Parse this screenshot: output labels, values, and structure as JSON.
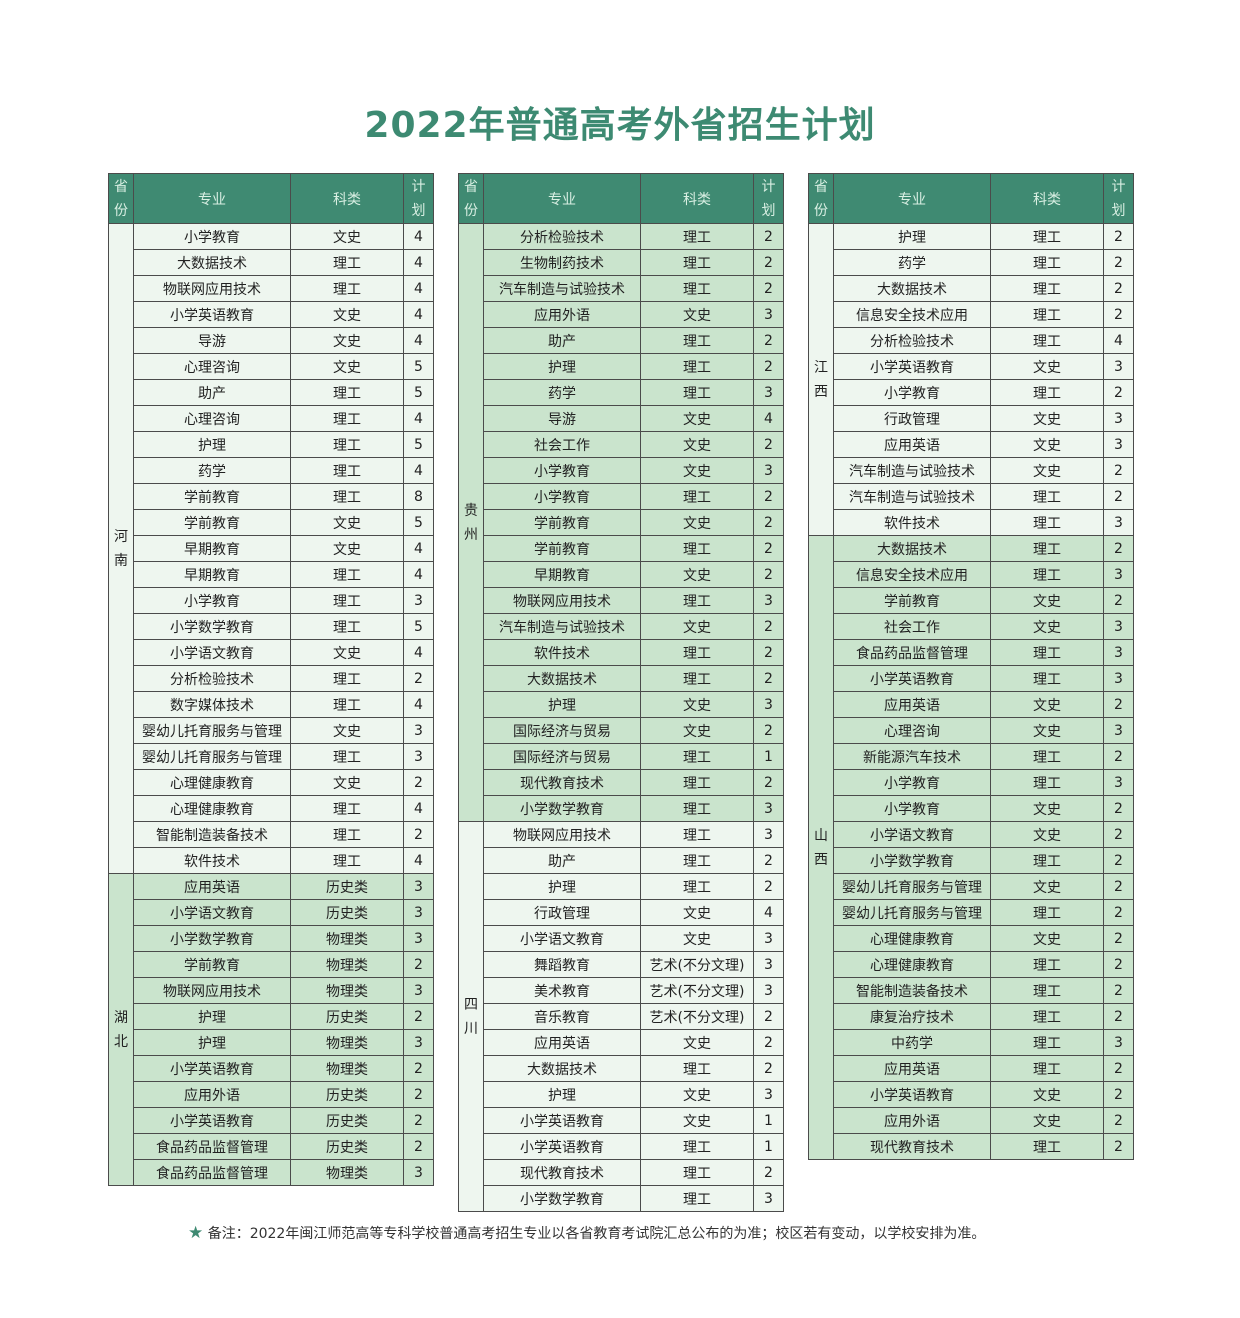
{
  "title": "2022年普通高考外省招生计划",
  "headers": {
    "province": "省份",
    "major": "专业",
    "subject": "科类",
    "plan": "计划"
  },
  "tables": [
    {
      "groups": [
        {
          "province": "河南",
          "shade": "light",
          "rows": [
            [
              "小学教育",
              "文史",
              "4"
            ],
            [
              "大数据技术",
              "理工",
              "4"
            ],
            [
              "物联网应用技术",
              "理工",
              "4"
            ],
            [
              "小学英语教育",
              "文史",
              "4"
            ],
            [
              "导游",
              "文史",
              "4"
            ],
            [
              "心理咨询",
              "文史",
              "5"
            ],
            [
              "助产",
              "理工",
              "5"
            ],
            [
              "心理咨询",
              "理工",
              "4"
            ],
            [
              "护理",
              "理工",
              "5"
            ],
            [
              "药学",
              "理工",
              "4"
            ],
            [
              "学前教育",
              "理工",
              "8"
            ],
            [
              "学前教育",
              "文史",
              "5"
            ],
            [
              "早期教育",
              "文史",
              "4"
            ],
            [
              "早期教育",
              "理工",
              "4"
            ],
            [
              "小学教育",
              "理工",
              "3"
            ],
            [
              "小学数学教育",
              "理工",
              "5"
            ],
            [
              "小学语文教育",
              "文史",
              "4"
            ],
            [
              "分析检验技术",
              "理工",
              "2"
            ],
            [
              "数字媒体技术",
              "理工",
              "4"
            ],
            [
              "婴幼儿托育服务与管理",
              "文史",
              "3"
            ],
            [
              "婴幼儿托育服务与管理",
              "理工",
              "3"
            ],
            [
              "心理健康教育",
              "文史",
              "2"
            ],
            [
              "心理健康教育",
              "理工",
              "4"
            ],
            [
              "智能制造装备技术",
              "理工",
              "2"
            ],
            [
              "软件技术",
              "理工",
              "4"
            ]
          ]
        },
        {
          "province": "湖北",
          "shade": "dark",
          "rows": [
            [
              "应用英语",
              "历史类",
              "3"
            ],
            [
              "小学语文教育",
              "历史类",
              "3"
            ],
            [
              "小学数学教育",
              "物理类",
              "3"
            ],
            [
              "学前教育",
              "物理类",
              "2"
            ],
            [
              "物联网应用技术",
              "物理类",
              "3"
            ],
            [
              "护理",
              "历史类",
              "2"
            ],
            [
              "护理",
              "物理类",
              "3"
            ],
            [
              "小学英语教育",
              "物理类",
              "2"
            ],
            [
              "应用外语",
              "历史类",
              "2"
            ],
            [
              "小学英语教育",
              "历史类",
              "2"
            ],
            [
              "食品药品监督管理",
              "历史类",
              "2"
            ],
            [
              "食品药品监督管理",
              "物理类",
              "3"
            ]
          ]
        }
      ]
    },
    {
      "groups": [
        {
          "province": "贵州",
          "shade": "dark",
          "rows": [
            [
              "分析检验技术",
              "理工",
              "2"
            ],
            [
              "生物制药技术",
              "理工",
              "2"
            ],
            [
              "汽车制造与试验技术",
              "理工",
              "2"
            ],
            [
              "应用外语",
              "文史",
              "3"
            ],
            [
              "助产",
              "理工",
              "2"
            ],
            [
              "护理",
              "理工",
              "2"
            ],
            [
              "药学",
              "理工",
              "3"
            ],
            [
              "导游",
              "文史",
              "4"
            ],
            [
              "社会工作",
              "文史",
              "2"
            ],
            [
              "小学教育",
              "文史",
              "3"
            ],
            [
              "小学教育",
              "理工",
              "2"
            ],
            [
              "学前教育",
              "文史",
              "2"
            ],
            [
              "学前教育",
              "理工",
              "2"
            ],
            [
              "早期教育",
              "文史",
              "2"
            ],
            [
              "物联网应用技术",
              "理工",
              "3"
            ],
            [
              "汽车制造与试验技术",
              "文史",
              "2"
            ],
            [
              "软件技术",
              "理工",
              "2"
            ],
            [
              "大数据技术",
              "理工",
              "2"
            ],
            [
              "护理",
              "文史",
              "3"
            ],
            [
              "国际经济与贸易",
              "文史",
              "2"
            ],
            [
              "国际经济与贸易",
              "理工",
              "1"
            ],
            [
              "现代教育技术",
              "理工",
              "2"
            ],
            [
              "小学数学教育",
              "理工",
              "3"
            ]
          ]
        },
        {
          "province": "四川",
          "shade": "light",
          "rows": [
            [
              "物联网应用技术",
              "理工",
              "3"
            ],
            [
              "助产",
              "理工",
              "2"
            ],
            [
              "护理",
              "理工",
              "2"
            ],
            [
              "行政管理",
              "文史",
              "4"
            ],
            [
              "小学语文教育",
              "文史",
              "3"
            ],
            [
              "舞蹈教育",
              "艺术(不分文理)",
              "3"
            ],
            [
              "美术教育",
              "艺术(不分文理)",
              "3"
            ],
            [
              "音乐教育",
              "艺术(不分文理)",
              "2"
            ],
            [
              "应用英语",
              "文史",
              "2"
            ],
            [
              "大数据技术",
              "理工",
              "2"
            ],
            [
              "护理",
              "文史",
              "3"
            ],
            [
              "小学英语教育",
              "文史",
              "1"
            ],
            [
              "小学英语教育",
              "理工",
              "1"
            ],
            [
              "现代教育技术",
              "理工",
              "2"
            ],
            [
              "小学数学教育",
              "理工",
              "3"
            ]
          ]
        }
      ]
    },
    {
      "groups": [
        {
          "province": "江西",
          "shade": "light",
          "rows": [
            [
              "护理",
              "理工",
              "2"
            ],
            [
              "药学",
              "理工",
              "2"
            ],
            [
              "大数据技术",
              "理工",
              "2"
            ],
            [
              "信息安全技术应用",
              "理工",
              "2"
            ],
            [
              "分析检验技术",
              "理工",
              "4"
            ],
            [
              "小学英语教育",
              "文史",
              "3"
            ],
            [
              "小学教育",
              "理工",
              "2"
            ],
            [
              "行政管理",
              "文史",
              "3"
            ],
            [
              "应用英语",
              "文史",
              "3"
            ],
            [
              "汽车制造与试验技术",
              "文史",
              "2"
            ],
            [
              "汽车制造与试验技术",
              "理工",
              "2"
            ],
            [
              "软件技术",
              "理工",
              "3"
            ]
          ]
        },
        {
          "province": "山西",
          "shade": "dark",
          "rows": [
            [
              "大数据技术",
              "理工",
              "2"
            ],
            [
              "信息安全技术应用",
              "理工",
              "3"
            ],
            [
              "学前教育",
              "文史",
              "2"
            ],
            [
              "社会工作",
              "文史",
              "3"
            ],
            [
              "食品药品监督管理",
              "理工",
              "3"
            ],
            [
              "小学英语教育",
              "理工",
              "3"
            ],
            [
              "应用英语",
              "文史",
              "2"
            ],
            [
              "心理咨询",
              "文史",
              "3"
            ],
            [
              "新能源汽车技术",
              "理工",
              "2"
            ],
            [
              "小学教育",
              "理工",
              "3"
            ],
            [
              "小学教育",
              "文史",
              "2"
            ],
            [
              "小学语文教育",
              "文史",
              "2"
            ],
            [
              "小学数学教育",
              "理工",
              "2"
            ],
            [
              "婴幼儿托育服务与管理",
              "文史",
              "2"
            ],
            [
              "婴幼儿托育服务与管理",
              "理工",
              "2"
            ],
            [
              "心理健康教育",
              "文史",
              "2"
            ],
            [
              "心理健康教育",
              "理工",
              "2"
            ],
            [
              "智能制造装备技术",
              "理工",
              "2"
            ],
            [
              "康复治疗技术",
              "理工",
              "2"
            ],
            [
              "中药学",
              "理工",
              "3"
            ],
            [
              "应用英语",
              "理工",
              "2"
            ],
            [
              "小学英语教育",
              "文史",
              "2"
            ],
            [
              "应用外语",
              "文史",
              "2"
            ],
            [
              "现代教育技术",
              "理工",
              "2"
            ]
          ]
        }
      ]
    }
  ],
  "note": {
    "star_icon": "star-icon",
    "text": "备注：2022年闽江师范高等专科学校普通高考招生专业以各省教育考试院汇总公布的为准；校区若有变动，以学校安排为准。"
  }
}
